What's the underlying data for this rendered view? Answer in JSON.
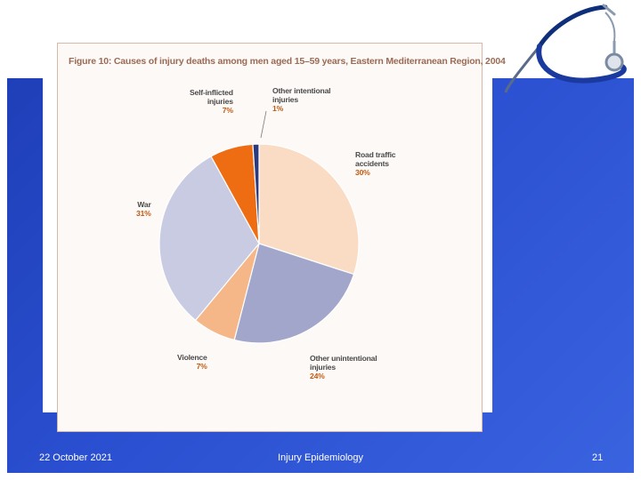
{
  "slide": {
    "footer_date": "22 October 2021",
    "footer_title": "Injury Epidemiology",
    "footer_page": "21"
  },
  "decoration": {
    "icon": "stethoscope-icon"
  },
  "chart_data": {
    "type": "pie",
    "title": "Figure 10: Causes of injury deaths among men aged 15–59 years, Eastern Mediterranean Region, 2004",
    "slices": [
      {
        "label_lines": [
          "Road traffic",
          "accidents"
        ],
        "pct_text": "30%",
        "value": 30,
        "color": "#fadcc4"
      },
      {
        "label_lines": [
          "Other unintentional",
          "injuries"
        ],
        "pct_text": "24%",
        "value": 24,
        "color": "#a3a6cb"
      },
      {
        "label_lines": [
          "Violence"
        ],
        "pct_text": "7%",
        "value": 7,
        "color": "#f5b688"
      },
      {
        "label_lines": [
          "War"
        ],
        "pct_text": "31%",
        "value": 31,
        "color": "#c9cbe2"
      },
      {
        "label_lines": [
          "Self-inflicted",
          "injuries"
        ],
        "pct_text": "7%",
        "value": 7,
        "color": "#ee6c12"
      },
      {
        "label_lines": [
          "Other intentional",
          "injuries"
        ],
        "pct_text": "1%",
        "value": 1,
        "color": "#2a3a7c"
      }
    ]
  }
}
